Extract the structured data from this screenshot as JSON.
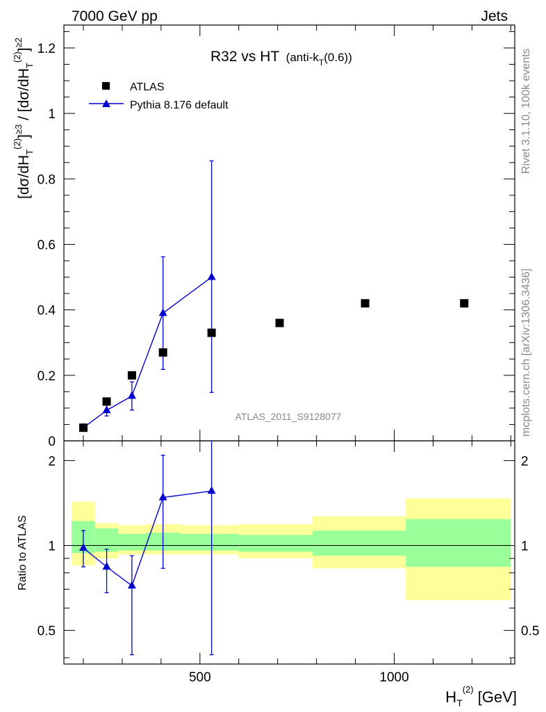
{
  "header": {
    "energy_label": "7000 GeV pp",
    "process_label": "Jets"
  },
  "side_labels": {
    "rivet": "Rivet 3.1.10,  100k events",
    "mcplots": "mcplots.cern.ch [arXiv:1306.3436]"
  },
  "colors": {
    "mc": "#0000cc",
    "data": "#000000",
    "band_inner": "#99ff99",
    "band_outer": "#ffff99"
  },
  "chart_data": [
    {
      "type": "scatter",
      "title_main": "R32 vs HT",
      "title_sub": "(anti-k",
      "title_sub_index": "T",
      "title_sub_tail": "(0.6))",
      "watermark": "ATLAS_2011_S9128077",
      "ylabel": "[dσ/dH_T^(2)]^≥3 / [dσ/dH_T^(2)]^≥2",
      "xlim": [
        150,
        1310
      ],
      "ylim": [
        0,
        1.27
      ],
      "yticks": [
        0,
        0.2,
        0.4,
        0.6,
        0.8,
        1,
        1.2
      ],
      "ytick_labels": [
        "0",
        "0.2",
        "0.4",
        "0.6",
        "0.8",
        "1",
        "1.2"
      ],
      "legend": [
        {
          "name": "ATLAS",
          "marker": "square"
        },
        {
          "name": "Pythia 8.176 default",
          "marker": "triangle"
        }
      ],
      "series": [
        {
          "name": "ATLAS",
          "x": [
            200,
            260,
            325,
            405,
            530,
            705,
            925,
            1180
          ],
          "y": [
            0.04,
            0.12,
            0.2,
            0.27,
            0.33,
            0.36,
            0.42,
            0.42
          ]
        },
        {
          "name": "Pythia 8.176 default",
          "x": [
            200,
            260,
            325,
            405,
            530
          ],
          "y": [
            0.04,
            0.093,
            0.137,
            0.39,
            0.5
          ],
          "err_low": [
            0.005,
            0.017,
            0.043,
            0.172,
            0.352
          ],
          "err_high": [
            0.005,
            0.017,
            0.043,
            0.172,
            0.355
          ]
        }
      ]
    },
    {
      "type": "line",
      "ylabel": "Ratio to ATLAS",
      "xlabel": "H_T^(2) [GeV]",
      "xlim": [
        150,
        1310
      ],
      "ylim": [
        0.38,
        2.35
      ],
      "ytick_labels": [
        {
          "v": 0.5,
          "label": "0.5"
        },
        {
          "v": 1,
          "label": "1"
        },
        {
          "v": 2,
          "label": "2"
        }
      ],
      "xtick_labels": [
        {
          "v": 500,
          "label": "500"
        },
        {
          "v": 1000,
          "label": "1000"
        }
      ],
      "bands": [
        {
          "x0": 170,
          "x1": 230,
          "in_lo": 0.94,
          "in_hi": 1.22,
          "out_lo": 0.85,
          "out_hi": 1.43
        },
        {
          "x0": 230,
          "x1": 290,
          "in_lo": 0.95,
          "in_hi": 1.15,
          "out_lo": 0.9,
          "out_hi": 1.2
        },
        {
          "x0": 290,
          "x1": 360,
          "in_lo": 0.96,
          "in_hi": 1.1,
          "out_lo": 0.93,
          "out_hi": 1.18
        },
        {
          "x0": 360,
          "x1": 450,
          "in_lo": 0.96,
          "in_hi": 1.11,
          "out_lo": 0.93,
          "out_hi": 1.19
        },
        {
          "x0": 450,
          "x1": 600,
          "in_lo": 0.96,
          "in_hi": 1.1,
          "out_lo": 0.93,
          "out_hi": 1.18
        },
        {
          "x0": 600,
          "x1": 790,
          "in_lo": 0.95,
          "in_hi": 1.09,
          "out_lo": 0.9,
          "out_hi": 1.19
        },
        {
          "x0": 790,
          "x1": 1030,
          "in_lo": 0.92,
          "in_hi": 1.13,
          "out_lo": 0.83,
          "out_hi": 1.27
        },
        {
          "x0": 1030,
          "x1": 1300,
          "in_lo": 0.84,
          "in_hi": 1.24,
          "out_lo": 0.64,
          "out_hi": 1.47
        }
      ],
      "series": [
        {
          "name": "Pythia 8.176 default",
          "x": [
            200,
            260,
            325,
            405,
            530
          ],
          "y": [
            0.98,
            0.84,
            0.72,
            1.48,
            1.56
          ],
          "err_low": [
            0.14,
            0.16,
            0.31,
            0.65,
            1.15
          ],
          "err_high": [
            0.15,
            0.13,
            0.2,
            0.61,
            0.95
          ]
        }
      ]
    }
  ]
}
